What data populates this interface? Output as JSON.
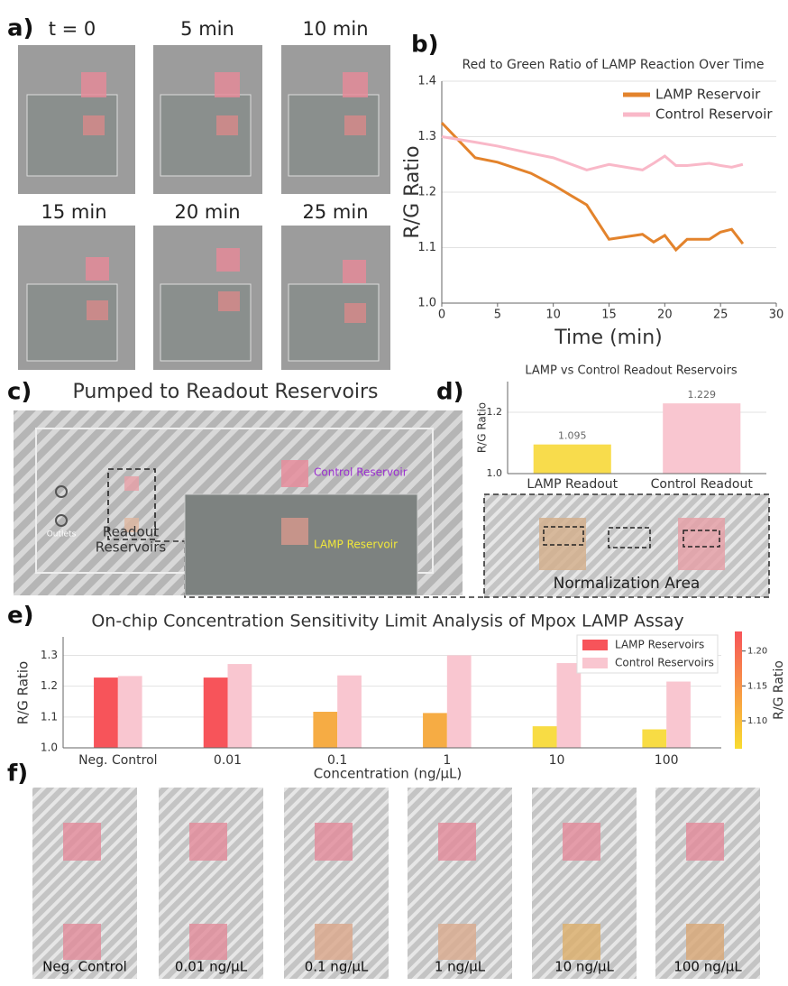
{
  "panel_labels": [
    "a)",
    "b)",
    "c)",
    "d)",
    "e)",
    "f)"
  ],
  "time_photos": {
    "captions": [
      "t = 0",
      "5 min",
      "10 min",
      "15 min",
      "20 min",
      "25 min"
    ]
  },
  "chip_photo": {
    "title": "Pumped to Readout Reservoirs",
    "outlets": "Outlets",
    "readout": [
      "Readout",
      "Reservoirs"
    ],
    "control": "Control Reservoir",
    "lamp": "LAMP Reservoir"
  },
  "normalization_photo": {
    "label": "Normalization Area"
  },
  "concentration_photos": {
    "captions": [
      "Neg. Control",
      "0.01 ng/μL",
      "0.1 ng/μL",
      "1 ng/μL",
      "10 ng/μL",
      "100 ng/μL"
    ]
  },
  "chart_data": [
    {
      "type": "line",
      "title": "Red to Green Ratio of LAMP Reaction Over Time",
      "xlabel": "Time (min)",
      "ylabel": "R/G Ratio",
      "x": [
        0,
        3,
        5,
        8,
        10,
        13,
        15,
        18,
        19,
        20,
        21,
        22,
        24,
        25,
        26,
        27
      ],
      "series": [
        {
          "name": "LAMP Reservoir",
          "color": "#e3832c",
          "values": [
            1.325,
            1.262,
            1.254,
            1.234,
            1.213,
            1.177,
            1.115,
            1.124,
            1.11,
            1.122,
            1.096,
            1.115,
            1.115,
            1.128,
            1.133,
            1.107
          ]
        },
        {
          "name": "Control Reservoir",
          "color": "#f9b8c8",
          "values": [
            1.3,
            1.29,
            1.283,
            1.27,
            1.262,
            1.24,
            1.25,
            1.24,
            1.252,
            1.265,
            1.248,
            1.248,
            1.252,
            1.248,
            1.245,
            1.25
          ]
        }
      ],
      "xlim": [
        0,
        30
      ],
      "xticks": [
        0,
        5,
        10,
        15,
        20,
        25,
        30
      ],
      "ylim": [
        1.0,
        1.4
      ],
      "yticks": [
        {
          "value": 1.0,
          "label": "1.0"
        },
        1.1,
        1.2,
        1.3,
        1.4
      ],
      "grid": true,
      "legend": "upper right"
    },
    {
      "type": "bar",
      "title": "LAMP vs Control Readout Reservoirs",
      "ylabel": "R/G Ratio",
      "categories": [
        "LAMP Readout",
        "Control Readout"
      ],
      "values": [
        1.095,
        1.229
      ],
      "colors": [
        "#f8dc4c",
        "#f9c6d0"
      ],
      "ylim": [
        1.0,
        1.3
      ],
      "yticks": [
        {
          "value": 1.0,
          "label": "1.0"
        },
        1.2
      ],
      "grid": true,
      "show_values": true
    },
    {
      "type": "bar",
      "title": "On-chip Concentration Sensitivity Limit Analysis of Mpox LAMP Assay",
      "xlabel": "Concentration (ng/μL)",
      "ylabel": "R/G Ratio",
      "categories": [
        "Neg. Control",
        "0.01",
        "0.1",
        "1",
        "10",
        "100"
      ],
      "series": [
        {
          "name": "LAMP Reservoirs",
          "colors": [
            "#f7545a",
            "#f7545a",
            "#f6ac44",
            "#f6ac44",
            "#f8dc44",
            "#f8dc44"
          ],
          "values": [
            1.228,
            1.228,
            1.117,
            1.113,
            1.07,
            1.06
          ]
        },
        {
          "name": "Control Reservoirs",
          "color": "#f9c6d0",
          "values": [
            1.233,
            1.272,
            1.235,
            1.3,
            1.275,
            1.215
          ]
        }
      ],
      "ylim": [
        1.0,
        1.36
      ],
      "yticks": [
        {
          "value": 1.0,
          "label": "1.0"
        },
        1.1,
        1.2,
        1.3
      ],
      "grid": true,
      "legend": "upper right",
      "colorbar": {
        "label": "R/G Ratio",
        "lim": [
          1.06,
          1.228
        ],
        "colors": [
          "#f8dc30",
          "#f7545a"
        ],
        "ticks": [
          {
            "value": 1.1,
            "label": "1.10"
          },
          1.15,
          {
            "value": 1.2,
            "label": "1.20"
          }
        ]
      }
    }
  ]
}
